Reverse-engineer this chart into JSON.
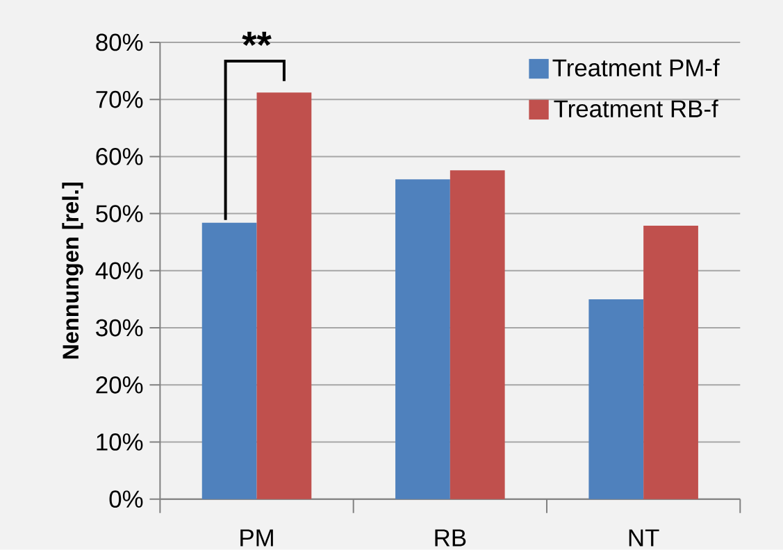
{
  "chart_data": {
    "type": "bar",
    "ylabel": "Nennungen [rel.]",
    "categories": [
      "PM",
      "RB",
      "NT"
    ],
    "series": [
      {
        "name": "Treatment PM-f",
        "color": "#4f81bd",
        "values": [
          48.4,
          56.0,
          35.0
        ]
      },
      {
        "name": "Treatment RB-f",
        "color": "#c0504d",
        "values": [
          71.2,
          57.6,
          47.9
        ]
      }
    ],
    "ylim": [
      0,
      80
    ],
    "yticks": [
      {
        "value": 0,
        "label": "0%"
      },
      {
        "value": 10,
        "label": "10%"
      },
      {
        "value": 20,
        "label": "20%"
      },
      {
        "value": 30,
        "label": "30%"
      },
      {
        "value": 40,
        "label": "40%"
      },
      {
        "value": 50,
        "label": "50%"
      },
      {
        "value": 60,
        "label": "60%"
      },
      {
        "value": 70,
        "label": "70%"
      },
      {
        "value": 80,
        "label": "80%"
      }
    ],
    "grid": "y",
    "legend": "top right",
    "annotations": [
      "**"
    ]
  }
}
